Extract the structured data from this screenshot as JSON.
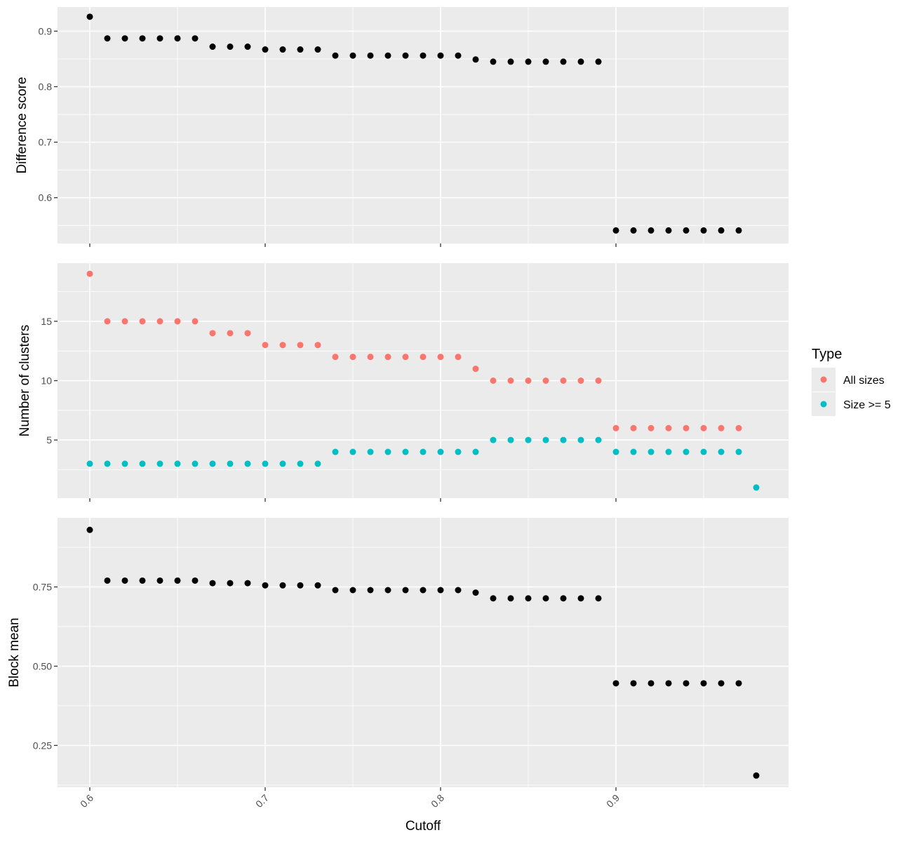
{
  "chart_data": {
    "type": "scatter",
    "xlabel": "Cutoff",
    "xlim": [
      0.5816,
      0.9984
    ],
    "x_ticks": [
      0.6,
      0.7,
      0.8,
      0.9
    ],
    "x_tick_labels": [
      "0.6",
      "0.7",
      "0.8",
      "0.9"
    ],
    "grid": true,
    "colors": {
      "panel_bg": "#ebebeb",
      "grid": "#ffffff",
      "all_sizes": "#f8766d",
      "size_ge_5": "#00bfc4",
      "black": "#000000"
    },
    "legend": {
      "title": "Type",
      "placement": "right",
      "entries": [
        {
          "label": "All sizes",
          "color": "#f8766d"
        },
        {
          "label": "Size >= 5",
          "color": "#00bfc4"
        }
      ]
    },
    "panels": [
      {
        "id": "difference",
        "ylabel": "Difference score",
        "ylim": [
          0.5175,
          0.9435
        ],
        "y_ticks": [
          0.6,
          0.7,
          0.8,
          0.9
        ],
        "y_tick_labels": [
          "0.6",
          "0.7",
          "0.8",
          "0.9"
        ],
        "series": [
          {
            "color": "#000000",
            "x": [
              0.6,
              0.61,
              0.62,
              0.63,
              0.64,
              0.65,
              0.66,
              0.67,
              0.68,
              0.69,
              0.7,
              0.71,
              0.72,
              0.73,
              0.74,
              0.75,
              0.76,
              0.77,
              0.78,
              0.79,
              0.8,
              0.81,
              0.82,
              0.83,
              0.84,
              0.85,
              0.86,
              0.87,
              0.88,
              0.89,
              0.9,
              0.91,
              0.92,
              0.93,
              0.94,
              0.95,
              0.96,
              0.97
            ],
            "y": [
              0.926,
              0.887,
              0.887,
              0.887,
              0.887,
              0.887,
              0.887,
              0.872,
              0.872,
              0.872,
              0.867,
              0.867,
              0.867,
              0.867,
              0.856,
              0.856,
              0.856,
              0.856,
              0.856,
              0.856,
              0.856,
              0.856,
              0.849,
              0.845,
              0.845,
              0.845,
              0.845,
              0.845,
              0.845,
              0.845,
              0.541,
              0.541,
              0.541,
              0.541,
              0.541,
              0.541,
              0.541,
              0.541
            ]
          }
        ]
      },
      {
        "id": "clusters",
        "ylabel": "Number of clusters",
        "ylim": [
          0.1,
          19.9
        ],
        "y_ticks": [
          5,
          10,
          15
        ],
        "y_tick_labels": [
          "5",
          "10",
          "15"
        ],
        "series": [
          {
            "name": "All sizes",
            "color": "#f8766d",
            "x": [
              0.6,
              0.61,
              0.62,
              0.63,
              0.64,
              0.65,
              0.66,
              0.67,
              0.68,
              0.69,
              0.7,
              0.71,
              0.72,
              0.73,
              0.74,
              0.75,
              0.76,
              0.77,
              0.78,
              0.79,
              0.8,
              0.81,
              0.82,
              0.83,
              0.84,
              0.85,
              0.86,
              0.87,
              0.88,
              0.89,
              0.9,
              0.91,
              0.92,
              0.93,
              0.94,
              0.95,
              0.96,
              0.97
            ],
            "y": [
              19,
              15,
              15,
              15,
              15,
              15,
              15,
              14,
              14,
              14,
              13,
              13,
              13,
              13,
              12,
              12,
              12,
              12,
              12,
              12,
              12,
              12,
              11,
              10,
              10,
              10,
              10,
              10,
              10,
              10,
              6,
              6,
              6,
              6,
              6,
              6,
              6,
              6
            ]
          },
          {
            "name": "Size >= 5",
            "color": "#00bfc4",
            "x": [
              0.6,
              0.61,
              0.62,
              0.63,
              0.64,
              0.65,
              0.66,
              0.67,
              0.68,
              0.69,
              0.7,
              0.71,
              0.72,
              0.73,
              0.74,
              0.75,
              0.76,
              0.77,
              0.78,
              0.79,
              0.8,
              0.81,
              0.82,
              0.83,
              0.84,
              0.85,
              0.86,
              0.87,
              0.88,
              0.89,
              0.9,
              0.91,
              0.92,
              0.93,
              0.94,
              0.95,
              0.96,
              0.97,
              0.98
            ],
            "y": [
              3,
              3,
              3,
              3,
              3,
              3,
              3,
              3,
              3,
              3,
              3,
              3,
              3,
              3,
              4,
              4,
              4,
              4,
              4,
              4,
              4,
              4,
              4,
              5,
              5,
              5,
              5,
              5,
              5,
              5,
              4,
              4,
              4,
              4,
              4,
              4,
              4,
              4,
              1
            ]
          }
        ]
      },
      {
        "id": "blockmean",
        "ylabel": "Block mean",
        "ylim": [
          0.118,
          0.968
        ],
        "y_ticks": [
          0.25,
          0.5,
          0.75
        ],
        "y_tick_labels": [
          "0.25",
          "0.50",
          "0.75"
        ],
        "series": [
          {
            "color": "#000000",
            "x": [
              0.6,
              0.61,
              0.62,
              0.63,
              0.64,
              0.65,
              0.66,
              0.67,
              0.68,
              0.69,
              0.7,
              0.71,
              0.72,
              0.73,
              0.74,
              0.75,
              0.76,
              0.77,
              0.78,
              0.79,
              0.8,
              0.81,
              0.82,
              0.83,
              0.84,
              0.85,
              0.86,
              0.87,
              0.88,
              0.89,
              0.9,
              0.91,
              0.92,
              0.93,
              0.94,
              0.95,
              0.96,
              0.97,
              0.98
            ],
            "y": [
              0.93,
              0.77,
              0.77,
              0.77,
              0.77,
              0.77,
              0.77,
              0.762,
              0.762,
              0.762,
              0.755,
              0.755,
              0.755,
              0.755,
              0.74,
              0.74,
              0.74,
              0.74,
              0.74,
              0.74,
              0.74,
              0.74,
              0.732,
              0.714,
              0.714,
              0.714,
              0.714,
              0.714,
              0.714,
              0.714,
              0.446,
              0.446,
              0.446,
              0.446,
              0.446,
              0.446,
              0.446,
              0.446,
              0.155
            ]
          }
        ]
      }
    ]
  }
}
